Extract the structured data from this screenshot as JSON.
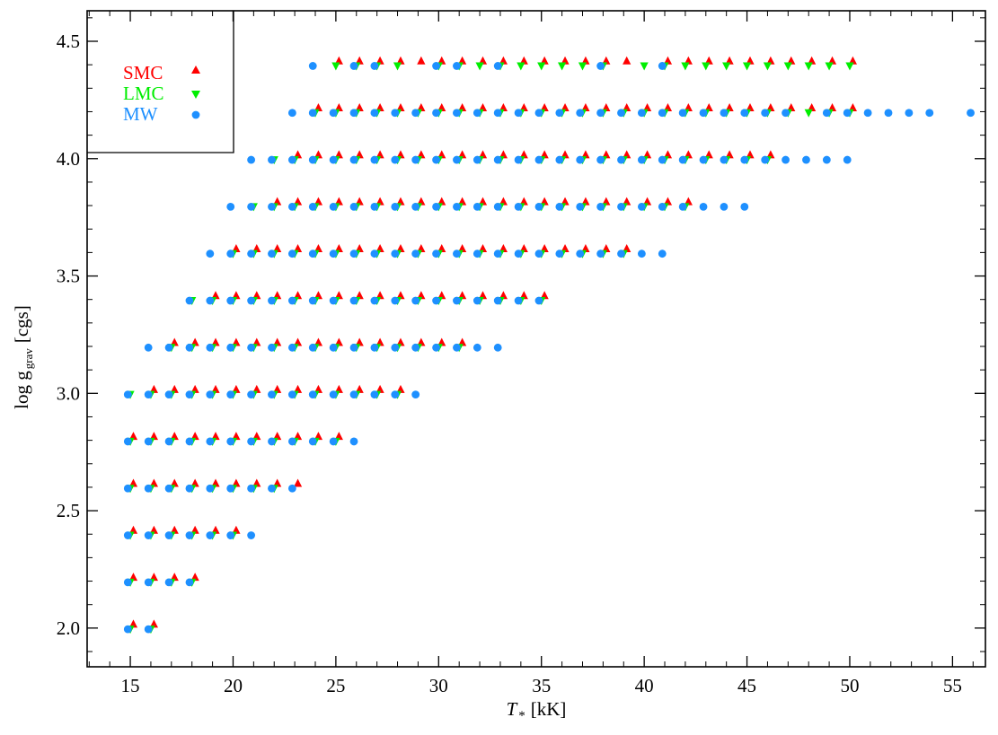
{
  "chart_data": {
    "type": "scatter",
    "xlabel": "T",
    "xlabel_sub": "*",
    "xlabel_unit": "[kK]",
    "ylabel": "log g",
    "ylabel_sub": "grav",
    "ylabel_unit": "[cgs]",
    "xlim": [
      12.9,
      56.6
    ],
    "ylim": [
      1.835,
      4.63
    ],
    "xticks": [
      15,
      20,
      25,
      30,
      35,
      40,
      45,
      50,
      55
    ],
    "yticks": [
      2.0,
      2.5,
      3.0,
      3.5,
      4.0,
      4.5
    ],
    "xtick_labels": [
      "15",
      "20",
      "25",
      "30",
      "35",
      "40",
      "45",
      "50",
      "55"
    ],
    "ytick_labels": [
      "2.0",
      "2.5",
      "3.0",
      "3.5",
      "4.0",
      "4.5"
    ],
    "grid": false,
    "legend_position": "top-left",
    "series": [
      {
        "name": "SMC",
        "color": "#ff0000",
        "marker": "triangle-up",
        "rows": [
          {
            "logg": 4.4,
            "x": [
              25,
              26,
              27,
              28,
              29,
              30,
              31,
              32,
              33,
              34,
              35,
              36,
              37,
              38,
              39,
              41,
              42,
              43,
              44,
              45,
              46,
              47,
              48,
              49,
              50
            ]
          },
          {
            "logg": 4.2,
            "x": [
              24,
              25,
              26,
              27,
              28,
              29,
              30,
              31,
              32,
              33,
              34,
              35,
              36,
              37,
              38,
              39,
              40,
              41,
              42,
              43,
              44,
              45,
              46,
              47,
              48,
              49,
              50
            ]
          },
          {
            "logg": 4.0,
            "x": [
              23,
              24,
              25,
              26,
              27,
              28,
              29,
              30,
              31,
              32,
              33,
              34,
              35,
              36,
              37,
              38,
              39,
              40,
              41,
              42,
              43,
              44,
              45,
              46
            ]
          },
          {
            "logg": 3.8,
            "x": [
              22,
              23,
              24,
              25,
              26,
              27,
              28,
              29,
              30,
              31,
              32,
              33,
              34,
              35,
              36,
              37,
              38,
              39,
              40,
              41,
              42
            ]
          },
          {
            "logg": 3.6,
            "x": [
              20,
              21,
              22,
              23,
              24,
              25,
              26,
              27,
              28,
              29,
              30,
              31,
              32,
              33,
              34,
              35,
              36,
              37,
              38,
              39
            ]
          },
          {
            "logg": 3.4,
            "x": [
              19,
              20,
              21,
              22,
              23,
              24,
              25,
              26,
              27,
              28,
              29,
              30,
              31,
              32,
              33,
              34,
              35
            ]
          },
          {
            "logg": 3.2,
            "x": [
              17,
              18,
              19,
              20,
              21,
              22,
              23,
              24,
              25,
              26,
              27,
              28,
              29,
              30,
              31
            ]
          },
          {
            "logg": 3.0,
            "x": [
              16,
              17,
              18,
              19,
              20,
              21,
              22,
              23,
              24,
              25,
              26,
              27,
              28
            ]
          },
          {
            "logg": 2.8,
            "x": [
              15,
              16,
              17,
              18,
              19,
              20,
              21,
              22,
              23,
              24,
              25
            ]
          },
          {
            "logg": 2.6,
            "x": [
              15,
              16,
              17,
              18,
              19,
              20,
              21,
              22,
              23
            ]
          },
          {
            "logg": 2.4,
            "x": [
              15,
              16,
              17,
              18,
              19,
              20
            ]
          },
          {
            "logg": 2.2,
            "x": [
              15,
              16,
              17,
              18
            ]
          },
          {
            "logg": 2.0,
            "x": [
              15,
              16
            ]
          }
        ]
      },
      {
        "name": "LMC",
        "color": "#00ee00",
        "marker": "triangle-down",
        "rows": [
          {
            "logg": 4.4,
            "x": [
              25,
              26,
              27,
              28,
              30,
              31,
              32,
              33,
              34,
              35,
              36,
              37,
              38,
              40,
              41,
              42,
              43,
              44,
              45,
              46,
              47,
              48,
              49,
              50
            ]
          },
          {
            "logg": 4.2,
            "x": [
              24,
              25,
              26,
              27,
              28,
              29,
              30,
              31,
              32,
              33,
              34,
              35,
              36,
              37,
              38,
              39,
              40,
              41,
              42,
              43,
              44,
              45,
              46,
              47,
              48,
              49,
              50
            ]
          },
          {
            "logg": 4.0,
            "x": [
              22,
              23,
              24,
              25,
              26,
              27,
              28,
              29,
              30,
              31,
              32,
              33,
              34,
              35,
              36,
              37,
              38,
              39,
              40,
              41,
              42,
              43,
              44,
              45,
              46
            ]
          },
          {
            "logg": 3.8,
            "x": [
              21,
              22,
              23,
              24,
              25,
              26,
              27,
              28,
              29,
              30,
              31,
              32,
              33,
              34,
              35,
              36,
              37,
              38,
              39,
              40,
              41,
              42
            ]
          },
          {
            "logg": 3.6,
            "x": [
              20,
              21,
              22,
              23,
              24,
              25,
              26,
              27,
              28,
              29,
              30,
              31,
              32,
              33,
              34,
              35,
              36,
              37,
              38,
              39
            ]
          },
          {
            "logg": 3.4,
            "x": [
              18,
              19,
              20,
              21,
              22,
              23,
              24,
              25,
              26,
              27,
              28,
              29,
              30,
              31,
              32,
              33,
              34,
              35
            ]
          },
          {
            "logg": 3.2,
            "x": [
              17,
              18,
              19,
              20,
              21,
              22,
              23,
              24,
              25,
              26,
              27,
              28,
              29,
              30,
              31
            ]
          },
          {
            "logg": 3.0,
            "x": [
              15,
              16,
              17,
              18,
              19,
              20,
              21,
              22,
              23,
              24,
              25,
              26,
              27,
              28
            ]
          },
          {
            "logg": 2.8,
            "x": [
              15,
              16,
              17,
              18,
              19,
              20,
              21,
              22,
              23,
              24,
              25
            ]
          },
          {
            "logg": 2.6,
            "x": [
              15,
              16,
              17,
              18,
              19,
              20,
              21,
              22
            ]
          },
          {
            "logg": 2.4,
            "x": [
              15,
              16,
              17,
              18,
              19,
              20
            ]
          },
          {
            "logg": 2.2,
            "x": [
              15,
              16,
              17,
              18
            ]
          },
          {
            "logg": 2.0,
            "x": [
              15,
              16
            ]
          }
        ]
      },
      {
        "name": "MW",
        "color": "#1e90ff",
        "marker": "circle",
        "rows": [
          {
            "logg": 4.4,
            "x": [
              24,
              26,
              27,
              30,
              31,
              33,
              38,
              41
            ]
          },
          {
            "logg": 4.2,
            "x": [
              23,
              24,
              25,
              26,
              27,
              28,
              29,
              30,
              31,
              32,
              33,
              34,
              35,
              36,
              37,
              38,
              39,
              40,
              41,
              42,
              43,
              44,
              45,
              46,
              47,
              49,
              50,
              51,
              52,
              53,
              54,
              56
            ]
          },
          {
            "logg": 4.0,
            "x": [
              21,
              22,
              23,
              24,
              25,
              26,
              27,
              28,
              29,
              30,
              31,
              32,
              33,
              34,
              35,
              36,
              37,
              38,
              39,
              40,
              41,
              42,
              43,
              44,
              45,
              46,
              47,
              48,
              49,
              50
            ]
          },
          {
            "logg": 3.8,
            "x": [
              20,
              21,
              22,
              23,
              24,
              25,
              26,
              27,
              28,
              29,
              30,
              31,
              32,
              33,
              34,
              35,
              36,
              37,
              38,
              39,
              40,
              41,
              42,
              43,
              44,
              45
            ]
          },
          {
            "logg": 3.6,
            "x": [
              19,
              20,
              21,
              22,
              23,
              24,
              25,
              26,
              27,
              28,
              29,
              30,
              31,
              32,
              33,
              34,
              35,
              36,
              37,
              38,
              39,
              40,
              41
            ]
          },
          {
            "logg": 3.4,
            "x": [
              18,
              19,
              20,
              21,
              22,
              23,
              24,
              25,
              26,
              27,
              28,
              29,
              30,
              31,
              32,
              33,
              34,
              35
            ]
          },
          {
            "logg": 3.2,
            "x": [
              16,
              17,
              18,
              19,
              20,
              21,
              22,
              23,
              24,
              25,
              26,
              27,
              28,
              29,
              30,
              31,
              32,
              33
            ]
          },
          {
            "logg": 3.0,
            "x": [
              15,
              16,
              17,
              18,
              19,
              20,
              21,
              22,
              23,
              24,
              25,
              26,
              27,
              28,
              29
            ]
          },
          {
            "logg": 2.8,
            "x": [
              15,
              16,
              17,
              18,
              19,
              20,
              21,
              22,
              23,
              24,
              25,
              26
            ]
          },
          {
            "logg": 2.6,
            "x": [
              15,
              16,
              17,
              18,
              19,
              20,
              21,
              22,
              23
            ]
          },
          {
            "logg": 2.4,
            "x": [
              15,
              16,
              17,
              18,
              19,
              20,
              21
            ]
          },
          {
            "logg": 2.2,
            "x": [
              15,
              16,
              17,
              18
            ]
          },
          {
            "logg": 2.0,
            "x": [
              15,
              16
            ]
          }
        ]
      }
    ]
  }
}
